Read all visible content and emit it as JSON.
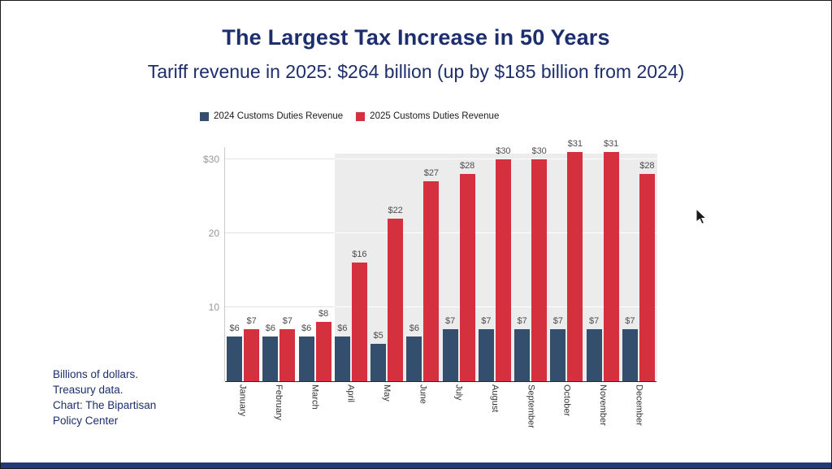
{
  "page": {
    "title": "The Largest Tax Increase in 50 Years",
    "subtitle": "Tariff revenue in 2025: $264 billion (up by $185 billion from 2024)"
  },
  "note": {
    "lines": [
      "Billions of dollars.",
      "Treasury data.",
      "Chart: The Bipartisan",
      "Policy Center"
    ]
  },
  "colors": {
    "title_navy": "#1c2e6e",
    "bar_2024_navy": "#344f6e",
    "bar_2025_red": "#d5303e",
    "highlight_gray": "#ececec",
    "bottom_strip_navy": "#24397b"
  },
  "chart_data": {
    "type": "bar",
    "categories": [
      "January",
      "February",
      "March",
      "April",
      "May",
      "June",
      "July",
      "August",
      "September",
      "October",
      "November",
      "December"
    ],
    "series": [
      {
        "name": "2024 Customs Duties Revenue",
        "color": "#344f6e",
        "values": [
          6,
          6,
          6,
          6,
          5,
          6,
          7,
          7,
          7,
          7,
          7,
          7
        ]
      },
      {
        "name": "2025 Customs Duties Revenue",
        "color": "#d5303e",
        "values": [
          7,
          7,
          8,
          16,
          22,
          27,
          28,
          30,
          30,
          31,
          31,
          28
        ]
      }
    ],
    "value_prefix": "$",
    "y_ticks": [
      {
        "value": 30,
        "label": "$30"
      },
      {
        "value": 20,
        "label": "20"
      },
      {
        "value": 10,
        "label": "10"
      }
    ],
    "ylim": [
      0,
      32
    ],
    "gridlines": true,
    "legend_position": "top-left",
    "highlight_region": {
      "from_category": "April",
      "to_category": "December",
      "color": "#ececec"
    },
    "title": "The Largest Tax Increase in 50 Years",
    "xlabel": "",
    "ylabel": "Billions of dollars"
  }
}
